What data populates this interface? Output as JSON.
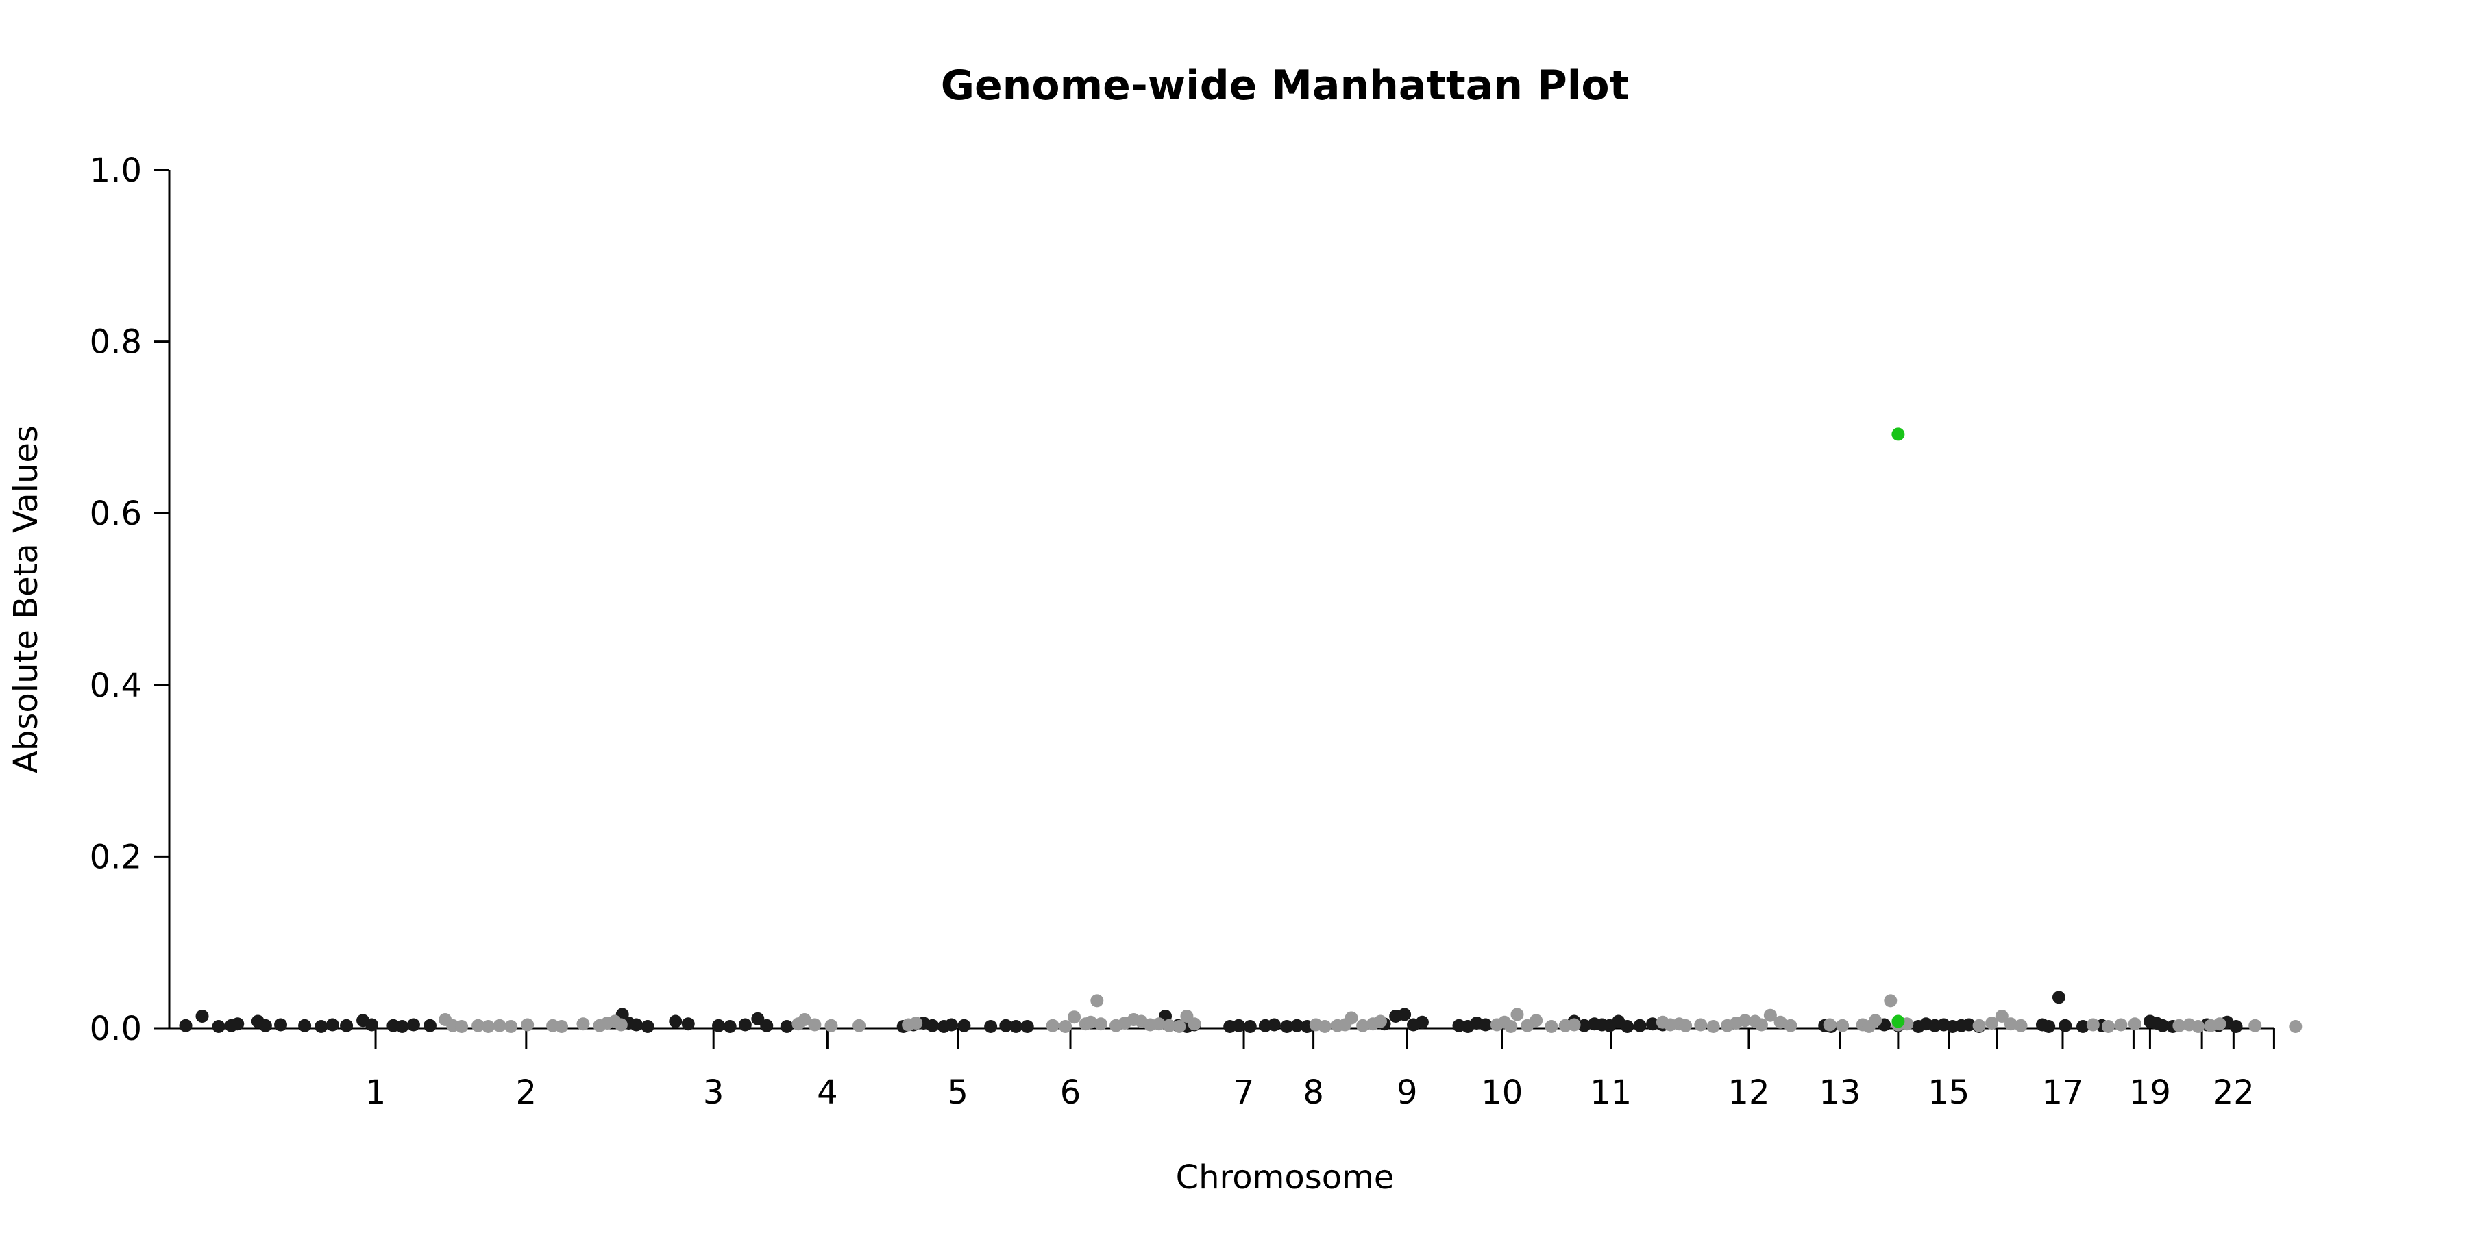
{
  "chart_data": {
    "type": "scatter",
    "title": "Genome-wide Manhattan Plot",
    "xlabel": "Chromosome",
    "ylabel": "Absolute Beta Values",
    "ylim": [
      0,
      1
    ],
    "y_ticks": [
      "0.0",
      "0.2",
      "0.4",
      "0.6",
      "0.8",
      "1.0"
    ],
    "x_ticks": [
      {
        "label": "1",
        "pos": 163
      },
      {
        "label": "2",
        "pos": 282
      },
      {
        "label": "3",
        "pos": 430
      },
      {
        "label": "4",
        "pos": 520
      },
      {
        "label": "5",
        "pos": 623
      },
      {
        "label": "6",
        "pos": 712
      },
      {
        "label": "7",
        "pos": 849
      },
      {
        "label": "8",
        "pos": 904
      },
      {
        "label": "9",
        "pos": 978
      },
      {
        "label": "10",
        "pos": 1053
      },
      {
        "label": "11",
        "pos": 1139
      },
      {
        "label": "12",
        "pos": 1248
      },
      {
        "label": "13",
        "pos": 1320
      },
      {
        "label": "15",
        "pos": 1406
      },
      {
        "label": "17",
        "pos": 1496
      },
      {
        "label": "19",
        "pos": 1565
      },
      {
        "label": "22",
        "pos": 1631
      }
    ],
    "x_boundaries": [
      163,
      282,
      430,
      520,
      623,
      712,
      849,
      904,
      978,
      1053,
      1139,
      1248,
      1320,
      1366,
      1406,
      1444,
      1496,
      1552,
      1565,
      1606,
      1631,
      1663
    ],
    "xlim": [
      0,
      1718
    ],
    "grid": false,
    "colors": {
      "odd": "#1a1a1a",
      "even": "#999999",
      "highlight": "#19c419"
    },
    "series": [
      {
        "color_key": "odd",
        "points": [
          [
            13,
            0.003
          ],
          [
            26,
            0.014
          ],
          [
            39,
            0.002
          ],
          [
            49,
            0.003
          ],
          [
            54,
            0.005
          ],
          [
            70,
            0.008
          ],
          [
            76,
            0.003
          ],
          [
            88,
            0.004
          ],
          [
            107,
            0.003
          ],
          [
            120,
            0.002
          ],
          [
            129,
            0.004
          ],
          [
            140,
            0.003
          ],
          [
            153,
            0.009
          ],
          [
            160,
            0.004
          ],
          [
            177,
            0.003
          ],
          [
            184,
            0.002
          ],
          [
            193,
            0.004
          ],
          [
            206,
            0.003
          ],
          [
            358,
            0.016
          ],
          [
            363,
            0.006
          ],
          [
            369,
            0.004
          ],
          [
            378,
            0.002
          ],
          [
            400,
            0.008
          ],
          [
            410,
            0.005
          ],
          [
            434,
            0.003
          ],
          [
            443,
            0.002
          ],
          [
            455,
            0.004
          ],
          [
            465,
            0.011
          ],
          [
            472,
            0.003
          ],
          [
            488,
            0.002
          ],
          [
            580,
            0.002
          ],
          [
            588,
            0.004
          ],
          [
            596,
            0.006
          ],
          [
            603,
            0.003
          ],
          [
            612,
            0.002
          ],
          [
            618,
            0.004
          ],
          [
            628,
            0.003
          ],
          [
            649,
            0.002
          ],
          [
            661,
            0.003
          ],
          [
            669,
            0.002
          ],
          [
            678,
            0.002
          ],
          [
            787,
            0.014
          ],
          [
            797,
            0.003
          ],
          [
            804,
            0.002
          ],
          [
            810,
            0.004
          ],
          [
            838,
            0.002
          ],
          [
            845,
            0.003
          ],
          [
            854,
            0.002
          ],
          [
            866,
            0.003
          ],
          [
            873,
            0.004
          ],
          [
            883,
            0.002
          ],
          [
            891,
            0.003
          ],
          [
            899,
            0.002
          ],
          [
            960,
            0.005
          ],
          [
            969,
            0.014
          ],
          [
            976,
            0.016
          ],
          [
            983,
            0.004
          ],
          [
            990,
            0.007
          ],
          [
            1019,
            0.003
          ],
          [
            1026,
            0.002
          ],
          [
            1033,
            0.006
          ],
          [
            1040,
            0.004
          ],
          [
            1110,
            0.008
          ],
          [
            1118,
            0.003
          ],
          [
            1126,
            0.005
          ],
          [
            1132,
            0.004
          ],
          [
            1138,
            0.003
          ],
          [
            1145,
            0.008
          ],
          [
            1152,
            0.002
          ],
          [
            1162,
            0.003
          ],
          [
            1172,
            0.005
          ],
          [
            1180,
            0.004
          ],
          [
            1308,
            0.003
          ],
          [
            1313,
            0.002
          ],
          [
            1355,
            0.004
          ],
          [
            1366,
            0.003
          ],
          [
            1382,
            0.002
          ],
          [
            1388,
            0.005
          ],
          [
            1395,
            0.003
          ],
          [
            1402,
            0.004
          ],
          [
            1409,
            0.002
          ],
          [
            1416,
            0.003
          ],
          [
            1422,
            0.004
          ],
          [
            1430,
            0.002
          ],
          [
            1480,
            0.004
          ],
          [
            1485,
            0.002
          ],
          [
            1493,
            0.036
          ],
          [
            1498,
            0.003
          ],
          [
            1512,
            0.002
          ],
          [
            1527,
            0.003
          ],
          [
            1565,
            0.008
          ],
          [
            1570,
            0.006
          ],
          [
            1575,
            0.003
          ],
          [
            1583,
            0.002
          ],
          [
            1610,
            0.004
          ],
          [
            1619,
            0.003
          ],
          [
            1626,
            0.007
          ],
          [
            1633,
            0.002
          ]
        ]
      },
      {
        "color_key": "even",
        "points": [
          [
            218,
            0.01
          ],
          [
            224,
            0.003
          ],
          [
            231,
            0.002
          ],
          [
            244,
            0.003
          ],
          [
            252,
            0.002
          ],
          [
            261,
            0.003
          ],
          [
            270,
            0.002
          ],
          [
            283,
            0.004
          ],
          [
            303,
            0.003
          ],
          [
            310,
            0.002
          ],
          [
            327,
            0.005
          ],
          [
            340,
            0.003
          ],
          [
            346,
            0.006
          ],
          [
            352,
            0.008
          ],
          [
            357,
            0.004
          ],
          [
            497,
            0.005
          ],
          [
            502,
            0.01
          ],
          [
            510,
            0.004
          ],
          [
            523,
            0.003
          ],
          [
            545,
            0.003
          ],
          [
            584,
            0.004
          ],
          [
            590,
            0.006
          ],
          [
            698,
            0.003
          ],
          [
            708,
            0.002
          ],
          [
            715,
            0.013
          ],
          [
            724,
            0.005
          ],
          [
            728,
            0.007
          ],
          [
            733,
            0.032
          ],
          [
            736,
            0.005
          ],
          [
            748,
            0.003
          ],
          [
            755,
            0.006
          ],
          [
            762,
            0.01
          ],
          [
            768,
            0.008
          ],
          [
            775,
            0.004
          ],
          [
            782,
            0.005
          ],
          [
            790,
            0.003
          ],
          [
            798,
            0.002
          ],
          [
            804,
            0.014
          ],
          [
            810,
            0.005
          ],
          [
            906,
            0.004
          ],
          [
            913,
            0.002
          ],
          [
            923,
            0.003
          ],
          [
            929,
            0.004
          ],
          [
            934,
            0.012
          ],
          [
            943,
            0.003
          ],
          [
            951,
            0.005
          ],
          [
            957,
            0.008
          ],
          [
            1049,
            0.004
          ],
          [
            1055,
            0.007
          ],
          [
            1060,
            0.002
          ],
          [
            1065,
            0.016
          ],
          [
            1073,
            0.003
          ],
          [
            1080,
            0.009
          ],
          [
            1092,
            0.002
          ],
          [
            1103,
            0.003
          ],
          [
            1110,
            0.004
          ],
          [
            1180,
            0.007
          ],
          [
            1186,
            0.004
          ],
          [
            1193,
            0.005
          ],
          [
            1198,
            0.003
          ],
          [
            1210,
            0.004
          ],
          [
            1220,
            0.002
          ],
          [
            1231,
            0.003
          ],
          [
            1238,
            0.006
          ],
          [
            1245,
            0.009
          ],
          [
            1253,
            0.008
          ],
          [
            1258,
            0.004
          ],
          [
            1265,
            0.015
          ],
          [
            1273,
            0.007
          ],
          [
            1281,
            0.003
          ],
          [
            1312,
            0.004
          ],
          [
            1322,
            0.003
          ],
          [
            1338,
            0.004
          ],
          [
            1343,
            0.002
          ],
          [
            1348,
            0.009
          ],
          [
            1360,
            0.032
          ],
          [
            1366,
            0.004
          ],
          [
            1373,
            0.005
          ],
          [
            1430,
            0.003
          ],
          [
            1440,
            0.006
          ],
          [
            1448,
            0.014
          ],
          [
            1455,
            0.005
          ],
          [
            1463,
            0.003
          ],
          [
            1520,
            0.004
          ],
          [
            1532,
            0.002
          ],
          [
            1542,
            0.004
          ],
          [
            1553,
            0.005
          ],
          [
            1588,
            0.003
          ],
          [
            1596,
            0.004
          ],
          [
            1603,
            0.002
          ],
          [
            1613,
            0.003
          ],
          [
            1620,
            0.005
          ],
          [
            1648,
            0.003
          ],
          [
            1680,
            0.002
          ]
        ]
      },
      {
        "color_key": "highlight",
        "points": [
          [
            1366,
            0.692
          ],
          [
            1366,
            0.008
          ]
        ]
      }
    ]
  }
}
